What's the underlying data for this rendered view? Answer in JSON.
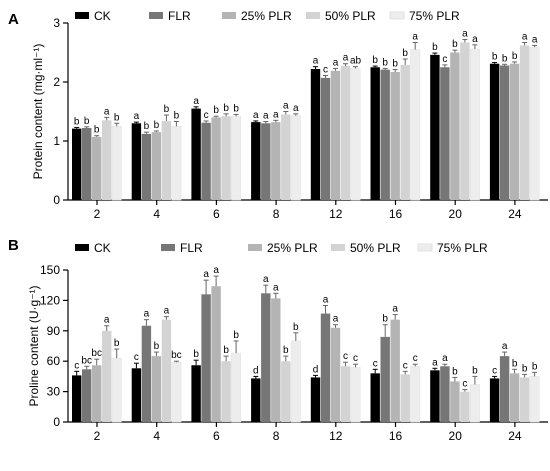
{
  "chart_data": [
    {
      "panel": "A",
      "type": "bar",
      "ylabel": "Protein content (mg·ml⁻¹)",
      "ylim": [
        0,
        3
      ],
      "yticks": [
        0,
        1,
        2,
        3
      ],
      "grid": false,
      "legend_position": "top",
      "categories": [
        "2",
        "4",
        "6",
        "8",
        "12",
        "16",
        "20",
        "24"
      ],
      "series": [
        {
          "name": "CK",
          "color": "#000000",
          "values": [
            1.21,
            1.3,
            1.55,
            1.32,
            2.22,
            2.25,
            2.46,
            2.31
          ],
          "errors": [
            0.02,
            0.02,
            0.03,
            0.02,
            0.04,
            0.02,
            0.03,
            0.02
          ],
          "labels": [
            "b",
            "a",
            "a",
            "a",
            "a",
            "b",
            "b",
            "b"
          ]
        },
        {
          "name": "FLR",
          "color": "#767676",
          "values": [
            1.22,
            1.12,
            1.31,
            1.3,
            2.07,
            2.21,
            2.25,
            2.28
          ],
          "errors": [
            0.02,
            0.03,
            0.03,
            0.03,
            0.04,
            0.02,
            0.04,
            0.02
          ],
          "labels": [
            "b",
            "b",
            "c",
            "a",
            "c",
            "b",
            "c",
            "b"
          ]
        },
        {
          "name": "25% PLR",
          "color": "#b4b4b4",
          "values": [
            1.07,
            1.15,
            1.4,
            1.32,
            2.19,
            2.17,
            2.5,
            2.31
          ],
          "errors": [
            0.02,
            0.02,
            0.02,
            0.03,
            0.04,
            0.04,
            0.04,
            0.03
          ],
          "labels": [
            "b",
            "b",
            "b",
            "a",
            "a",
            "b",
            "b",
            "b"
          ]
        },
        {
          "name": "50% PLR",
          "color": "#d3d3d3",
          "values": [
            1.35,
            1.34,
            1.42,
            1.45,
            2.27,
            2.29,
            2.67,
            2.62
          ],
          "errors": [
            0.05,
            0.1,
            0.04,
            0.05,
            0.04,
            0.1,
            0.05,
            0.05
          ],
          "labels": [
            "a",
            "b",
            "b",
            "a",
            "a",
            "b",
            "a",
            "a"
          ]
        },
        {
          "name": "75% PLR",
          "color": "#ededed",
          "values": [
            1.25,
            1.25,
            1.42,
            1.43,
            2.23,
            2.55,
            2.56,
            2.59
          ],
          "errors": [
            0.05,
            0.08,
            0.03,
            0.03,
            0.03,
            0.12,
            0.07,
            0.03
          ],
          "labels": [
            "b",
            "b",
            "b",
            "a",
            "ab",
            "a",
            "a",
            "a"
          ]
        }
      ]
    },
    {
      "panel": "B",
      "type": "bar",
      "ylabel": "Proline content (U·g⁻¹)",
      "ylim": [
        0,
        150
      ],
      "yticks": [
        0,
        30,
        60,
        90,
        120,
        150
      ],
      "grid": false,
      "legend_position": "top",
      "categories": [
        "2",
        "4",
        "6",
        "8",
        "12",
        "16",
        "20",
        "24"
      ],
      "series": [
        {
          "name": "CK",
          "color": "#000000",
          "values": [
            46,
            53,
            56,
            43,
            44,
            48,
            51,
            43
          ],
          "errors": [
            4,
            5,
            5,
            2,
            2,
            4,
            2,
            2
          ],
          "labels": [
            "c",
            "c",
            "b",
            "d",
            "d",
            "c",
            "a",
            "c"
          ]
        },
        {
          "name": "FLR",
          "color": "#767676",
          "values": [
            52,
            95,
            126,
            127,
            107,
            84,
            55,
            65
          ],
          "errors": [
            3,
            6,
            14,
            8,
            8,
            12,
            2,
            4
          ],
          "labels": [
            "bc",
            "a",
            "a",
            "a",
            "a",
            "b",
            "a",
            "a"
          ]
        },
        {
          "name": "25% PLR",
          "color": "#b4b4b4",
          "values": [
            56,
            65,
            134,
            122,
            93,
            101,
            40,
            48
          ],
          "errors": [
            6,
            4,
            10,
            5,
            3,
            5,
            4,
            4
          ],
          "labels": [
            "bc",
            "b",
            "a",
            "a",
            "a",
            "a",
            "b",
            "b"
          ]
        },
        {
          "name": "50% PLR",
          "color": "#d3d3d3",
          "values": [
            90,
            101,
            60,
            60,
            55,
            47,
            30,
            44
          ],
          "errors": [
            5,
            3,
            5,
            5,
            4,
            3,
            2,
            3
          ],
          "labels": [
            "a",
            "a",
            "b",
            "b",
            "c",
            "c",
            "c",
            "b"
          ]
        },
        {
          "name": "75% PLR",
          "color": "#ededed",
          "values": [
            63,
            59,
            68,
            80,
            54,
            55,
            37,
            45
          ],
          "errors": [
            9,
            1,
            12,
            8,
            3,
            2,
            8,
            4
          ],
          "labels": [
            "b",
            "bc",
            "b",
            "b",
            "c",
            "c",
            "b",
            "b"
          ]
        }
      ]
    }
  ]
}
